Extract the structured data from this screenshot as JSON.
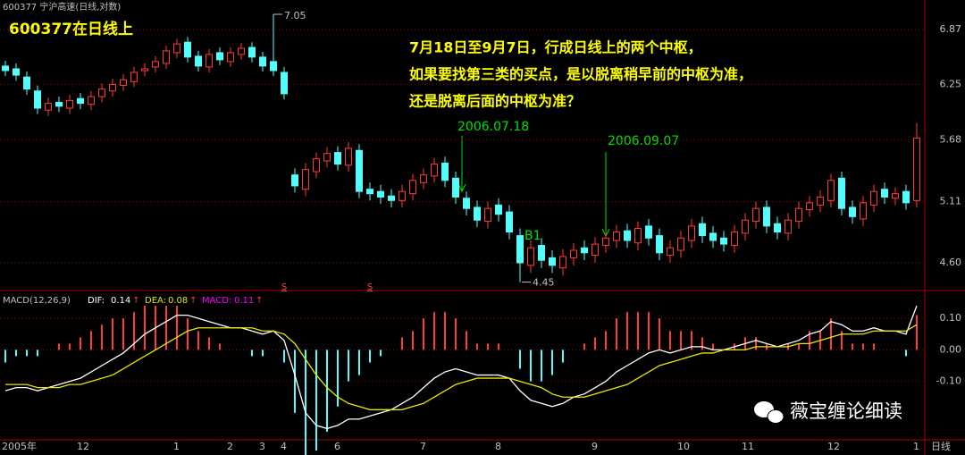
{
  "chart_data": [
    {
      "type": "candlestick",
      "title": "600377 宁沪高速(日线,对数)",
      "subtitle": "600377在日线上",
      "annotations": [
        "7月18日至9月7日，行成日线上的两个中枢，",
        "如果要找第三类的买点，是以脱离稍早前的中枢为准，",
        "还是脱离后面的中枢为准？"
      ],
      "date_labels": [
        "2006.07.18",
        "2006.09.07"
      ],
      "point_label": "B1",
      "signal_labels": [
        "S",
        "S"
      ],
      "period_label": "日线",
      "categories": [
        "2005年",
        null,
        null,
        null,
        null,
        null,
        null,
        "12",
        null,
        null,
        null,
        null,
        null,
        null,
        null,
        null,
        "1",
        null,
        null,
        null,
        null,
        "2",
        null,
        null,
        "3",
        null,
        "4",
        null,
        null,
        null,
        null,
        "6",
        null,
        null,
        null,
        null,
        null,
        null,
        null,
        "7",
        null,
        null,
        null,
        null,
        null,
        null,
        "8",
        null,
        null,
        null,
        null,
        null,
        null,
        null,
        null,
        "9",
        null,
        null,
        null,
        null,
        null,
        null,
        null,
        "10",
        null,
        null,
        null,
        null,
        null,
        "11",
        null,
        null,
        null,
        null,
        null,
        null,
        null,
        "12",
        null,
        null,
        null,
        null,
        null,
        null,
        null,
        "1"
      ],
      "open": [
        6.45,
        6.42,
        6.33,
        6.18,
        5.98,
        6.06,
        6.0,
        6.1,
        6.04,
        6.12,
        6.18,
        6.24,
        6.28,
        6.4,
        6.44,
        6.48,
        6.6,
        6.72,
        6.56,
        6.44,
        6.6,
        6.5,
        6.58,
        6.66,
        6.55,
        6.5,
        6.38,
        5.35,
        5.22,
        5.38,
        5.48,
        5.56,
        5.44,
        5.58,
        5.22,
        5.2,
        5.16,
        5.12,
        5.18,
        5.28,
        5.34,
        5.46,
        5.32,
        5.14,
        5.06,
        4.94,
        5.08,
        5.02,
        4.82,
        4.58,
        4.74,
        4.64,
        4.56,
        4.64,
        4.72,
        4.66,
        4.74,
        4.78,
        4.86,
        4.76,
        4.9,
        4.82,
        4.66,
        4.7,
        4.78,
        4.92,
        4.84,
        4.8,
        4.74,
        4.84,
        4.94,
        5.06,
        4.92,
        4.84,
        4.94,
        5.04,
        5.08,
        5.12,
        5.32,
        5.06,
        4.96,
        5.08,
        5.22,
        5.14,
        5.2,
        5.12
      ],
      "high": [
        6.51,
        6.48,
        6.39,
        6.24,
        6.11,
        6.12,
        6.14,
        6.16,
        6.18,
        6.26,
        6.31,
        6.36,
        6.44,
        6.48,
        6.56,
        6.68,
        6.76,
        6.78,
        6.62,
        6.64,
        6.66,
        6.66,
        6.71,
        6.72,
        6.61,
        7.05,
        6.44,
        5.41,
        5.46,
        5.56,
        5.61,
        5.62,
        5.66,
        5.64,
        5.28,
        5.26,
        5.22,
        5.26,
        5.36,
        5.41,
        5.51,
        5.52,
        5.38,
        5.2,
        5.12,
        5.11,
        5.14,
        5.08,
        4.88,
        4.78,
        4.8,
        4.7,
        4.71,
        4.76,
        4.78,
        4.81,
        4.86,
        4.91,
        4.92,
        4.94,
        4.96,
        4.88,
        4.78,
        4.86,
        4.96,
        4.98,
        4.9,
        4.86,
        4.91,
        5.01,
        5.11,
        5.12,
        4.98,
        5.01,
        5.11,
        5.16,
        5.21,
        5.36,
        5.38,
        5.12,
        5.16,
        5.26,
        5.28,
        5.24,
        5.26,
        5.85
      ],
      "low": [
        6.34,
        6.29,
        6.14,
        5.94,
        5.92,
        5.96,
        5.94,
        5.99,
        5.98,
        6.06,
        6.12,
        6.18,
        6.22,
        6.34,
        6.38,
        6.42,
        6.54,
        6.49,
        6.39,
        6.38,
        6.46,
        6.44,
        6.52,
        6.49,
        6.39,
        6.34,
        6.09,
        5.19,
        5.16,
        5.32,
        5.42,
        5.39,
        5.38,
        5.14,
        5.12,
        5.09,
        5.06,
        5.06,
        5.12,
        5.22,
        5.28,
        5.24,
        5.09,
        4.99,
        4.89,
        4.88,
        4.94,
        4.79,
        4.45,
        4.52,
        4.56,
        4.52,
        4.5,
        4.58,
        4.62,
        4.6,
        4.68,
        4.72,
        4.72,
        4.7,
        4.74,
        4.62,
        4.6,
        4.64,
        4.72,
        4.76,
        4.72,
        4.69,
        4.68,
        4.78,
        4.88,
        4.84,
        4.79,
        4.78,
        4.88,
        4.98,
        5.02,
        5.06,
        4.99,
        4.92,
        4.9,
        5.02,
        5.09,
        5.08,
        5.04,
        5.06
      ],
      "close": [
        6.4,
        6.35,
        6.2,
        6.0,
        6.05,
        6.02,
        6.08,
        6.05,
        6.12,
        6.2,
        6.25,
        6.3,
        6.38,
        6.42,
        6.5,
        6.62,
        6.7,
        6.55,
        6.45,
        6.58,
        6.52,
        6.6,
        6.65,
        6.55,
        6.45,
        6.4,
        6.15,
        5.25,
        5.4,
        5.5,
        5.55,
        5.45,
        5.6,
        5.2,
        5.18,
        5.15,
        5.12,
        5.2,
        5.3,
        5.35,
        5.45,
        5.3,
        5.15,
        5.05,
        4.95,
        5.05,
        5.0,
        4.85,
        4.6,
        4.72,
        4.62,
        4.58,
        4.65,
        4.7,
        4.68,
        4.75,
        4.8,
        4.85,
        4.78,
        4.88,
        4.8,
        4.68,
        4.72,
        4.8,
        4.9,
        4.82,
        4.78,
        4.75,
        4.85,
        4.95,
        5.05,
        4.9,
        4.85,
        4.95,
        5.05,
        5.1,
        5.15,
        5.3,
        5.05,
        4.98,
        5.1,
        5.2,
        5.15,
        5.18,
        5.1,
        5.7
      ],
      "up_color": "#ff3c3c",
      "down_color": "#54fcfc",
      "log_scale": true,
      "grid": true,
      "ylim": [
        4.42,
        7.17
      ],
      "yticks": [
        6.87,
        6.25,
        5.68,
        5.11,
        {
          "value": 4.6,
          "label": "4.60"
        }
      ]
    },
    {
      "type": "macd",
      "title": "MACD(12,26,9)",
      "trend_marker": "↑",
      "series": [
        {
          "name": "DIF:",
          "color": "#ffffff",
          "values": [
            -0.13,
            -0.12,
            -0.12,
            -0.13,
            -0.12,
            -0.11,
            -0.1,
            -0.09,
            -0.07,
            -0.05,
            -0.03,
            -0.01,
            0.02,
            0.05,
            0.07,
            0.09,
            0.11,
            0.11,
            0.1,
            0.09,
            0.08,
            0.07,
            0.07,
            0.06,
            0.05,
            0.06,
            0.03,
            -0.08,
            -0.2,
            -0.24,
            -0.25,
            -0.24,
            -0.22,
            -0.22,
            -0.21,
            -0.2,
            -0.19,
            -0.17,
            -0.15,
            -0.12,
            -0.09,
            -0.07,
            -0.06,
            -0.07,
            -0.08,
            -0.08,
            -0.08,
            -0.09,
            -0.13,
            -0.16,
            -0.17,
            -0.18,
            -0.17,
            -0.15,
            -0.14,
            -0.12,
            -0.1,
            -0.07,
            -0.05,
            -0.03,
            -0.01,
            0.0,
            -0.01,
            0.0,
            0.01,
            0.01,
            0.0,
            0.0,
            0.01,
            0.02,
            0.03,
            0.02,
            0.01,
            0.02,
            0.03,
            0.05,
            0.06,
            0.09,
            0.08,
            0.06,
            0.06,
            0.07,
            0.06,
            0.06,
            0.05,
            0.14
          ]
        },
        {
          "name": "DEA:",
          "color": "#e8e800",
          "values": [
            -0.11,
            -0.11,
            -0.11,
            -0.12,
            -0.12,
            -0.12,
            -0.11,
            -0.11,
            -0.1,
            -0.09,
            -0.08,
            -0.06,
            -0.04,
            -0.02,
            0.0,
            0.02,
            0.04,
            0.06,
            0.07,
            0.07,
            0.07,
            0.07,
            0.07,
            0.07,
            0.06,
            0.06,
            0.05,
            0.02,
            -0.03,
            -0.08,
            -0.12,
            -0.15,
            -0.17,
            -0.18,
            -0.19,
            -0.19,
            -0.19,
            -0.19,
            -0.18,
            -0.17,
            -0.15,
            -0.13,
            -0.11,
            -0.1,
            -0.09,
            -0.09,
            -0.09,
            -0.09,
            -0.1,
            -0.11,
            -0.12,
            -0.14,
            -0.15,
            -0.15,
            -0.15,
            -0.14,
            -0.13,
            -0.12,
            -0.11,
            -0.09,
            -0.07,
            -0.05,
            -0.04,
            -0.03,
            -0.02,
            -0.01,
            -0.01,
            0.0,
            0.0,
            0.0,
            0.01,
            0.01,
            0.01,
            0.01,
            0.02,
            0.02,
            0.03,
            0.04,
            0.05,
            0.05,
            0.05,
            0.06,
            0.06,
            0.06,
            0.06,
            0.08
          ]
        },
        {
          "name": "MACD:",
          "color": "#ff00ff",
          "values": [
            -0.04,
            -0.02,
            -0.02,
            -0.02,
            0.0,
            0.02,
            0.02,
            0.04,
            0.06,
            0.08,
            0.1,
            0.1,
            0.12,
            0.14,
            0.14,
            0.14,
            0.14,
            0.1,
            0.06,
            0.04,
            0.02,
            0.0,
            0.0,
            -0.02,
            -0.02,
            0.0,
            -0.04,
            -0.2,
            -0.34,
            -0.32,
            -0.26,
            -0.18,
            -0.1,
            -0.08,
            -0.04,
            -0.02,
            0.0,
            0.04,
            0.06,
            0.1,
            0.12,
            0.12,
            0.1,
            0.06,
            0.02,
            0.02,
            0.02,
            0.0,
            -0.06,
            -0.1,
            -0.1,
            -0.08,
            -0.04,
            0.0,
            0.02,
            0.04,
            0.06,
            0.1,
            0.12,
            0.12,
            0.12,
            0.1,
            0.06,
            0.06,
            0.06,
            0.04,
            0.02,
            0.0,
            0.02,
            0.04,
            0.04,
            0.02,
            0.0,
            0.02,
            0.02,
            0.06,
            0.06,
            0.1,
            0.06,
            0.02,
            0.02,
            0.02,
            0.0,
            0.0,
            -0.02,
            0.11
          ]
        }
      ],
      "up_color": "#ff3c3c",
      "down_color": "#54fcfc",
      "grid": true,
      "ylim": [
        -0.28,
        0.18
      ],
      "yticks": [
        {
          "value": 0.1,
          "label": "0.10"
        },
        {
          "value": 0,
          "label": "0.00"
        },
        {
          "value": -0.1,
          "label": "-0.10"
        }
      ]
    }
  ],
  "watermark": "薇宝缠论细读"
}
